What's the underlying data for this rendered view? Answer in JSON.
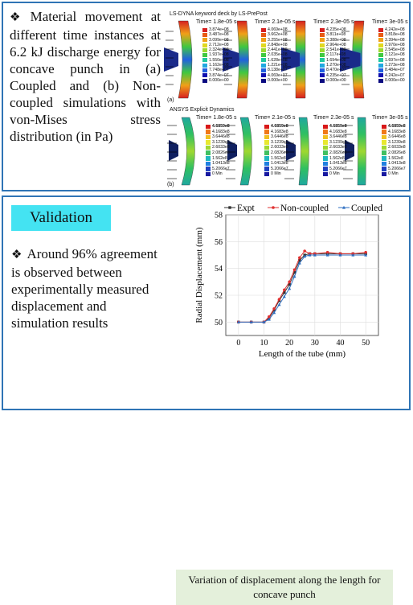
{
  "top": {
    "bullet": "❖",
    "text": "Material movement at different time instances at 6.2 kJ discharge energy for concave punch in (a) Coupled and (b) Non-coupled simulations with von-Mises stress distribution (in Pa)",
    "lsdyna_title": "LS-DYNA keyword deck by LS-PrePost",
    "ansys_title": "ANSYS Explicit Dynamics",
    "label_a": "(a)",
    "label_b": "(b)",
    "lsdyna_times": [
      "Time= 1.8e-05 s",
      "Time= 2.1e-05 s",
      "Time= 2.3e-05 s",
      "Time= 3e-05 s"
    ],
    "ansys_times": [
      "Time= 1.8e-05 s",
      "Time= 2.1e-05 s",
      "Time= 2.3e-05 s",
      "Time= 3e-05 s"
    ],
    "lsdyna_legends": [
      [
        "3.874e+08",
        "3.487e+08",
        "3.099e+08",
        "2.712e+08",
        "2.324e+08",
        "1.937e+08",
        "1.550e+08",
        "1.162e+08",
        "7.748e+07",
        "3.874e+07",
        "0.000e+00"
      ],
      [
        "4.069e+08",
        "3.662e+08",
        "3.255e+08",
        "2.848e+08",
        "2.441e+08",
        "2.035e+08",
        "1.628e+08",
        "1.221e+08",
        "8.138e+07",
        "4.069e+07",
        "0.000e+00"
      ],
      [
        "4.235e+08",
        "3.811e+08",
        "3.388e+08",
        "2.964e+08",
        "2.541e+08",
        "2.117e+08",
        "1.694e+08",
        "1.270e+08",
        "8.470e+07",
        "4.235e+07",
        "0.000e+00"
      ],
      [
        "4.242e+08",
        "3.818e+08",
        "3.394e+08",
        "2.970e+08",
        "2.545e+08",
        "2.121e+08",
        "1.697e+08",
        "1.273e+08",
        "8.484e+07",
        "4.242e+07",
        "0.000e+00"
      ]
    ],
    "ansys_legend": [
      "4.6859e8",
      "4.1683e8",
      "3.6446e8",
      "3.1239e8",
      "2.6033e8",
      "2.0826e8",
      "1.562e8",
      "1.0413e8",
      "5.2066e7",
      "0 Min"
    ],
    "ansys_legend_max": "4.6859e8"
  },
  "bottom": {
    "validation_label": "Validation",
    "bullet": "❖",
    "text": "Around 96% agreement is observed between experimentally measured displacement and simulation results",
    "caption": "Variation of displacement along the length for concave punch"
  },
  "colors": {
    "panel_border": "#2f74b5",
    "validation_bg": "#44e3f2",
    "caption_bg": "#e4f0db",
    "expt": "#333333",
    "noncoupled": "#e03030",
    "coupled": "#2f6fc0"
  },
  "chart_data": {
    "type": "line",
    "xlabel": "Length of the tube (mm)",
    "ylabel": "Radial Displacement (mm)",
    "xlim": [
      -5,
      55
    ],
    "ylim": [
      49,
      58
    ],
    "xticks": [
      0,
      10,
      20,
      30,
      40,
      50
    ],
    "yticks": [
      50,
      52,
      54,
      56,
      58
    ],
    "grid": true,
    "legend_position": "top",
    "series": [
      {
        "name": "Expt",
        "x": [
          0,
          5,
          10,
          12,
          14,
          16,
          18,
          20,
          22,
          24,
          26,
          28,
          30,
          35,
          40,
          45,
          50
        ],
        "y": [
          50,
          50,
          50,
          50.3,
          50.9,
          51.6,
          52.2,
          52.8,
          53.7,
          54.6,
          55.0,
          55.1,
          55.1,
          55.1,
          55.1,
          55.1,
          55.1
        ]
      },
      {
        "name": "Non-coupled",
        "x": [
          0,
          5,
          10,
          12,
          14,
          16,
          18,
          20,
          22,
          24,
          26,
          28,
          30,
          35,
          40,
          45,
          50
        ],
        "y": [
          50,
          50,
          50,
          50.4,
          51.0,
          51.7,
          52.4,
          53.0,
          53.9,
          54.8,
          55.3,
          55.1,
          55.1,
          55.2,
          55.1,
          55.1,
          55.2
        ]
      },
      {
        "name": "Coupled",
        "x": [
          0,
          5,
          10,
          12,
          14,
          16,
          18,
          20,
          22,
          24,
          26,
          28,
          30,
          35,
          40,
          45,
          50
        ],
        "y": [
          50,
          50,
          50,
          50.2,
          50.7,
          51.3,
          51.9,
          52.5,
          53.4,
          54.4,
          54.9,
          55.0,
          55.0,
          55.0,
          55.0,
          55.0,
          55.0
        ]
      }
    ]
  }
}
